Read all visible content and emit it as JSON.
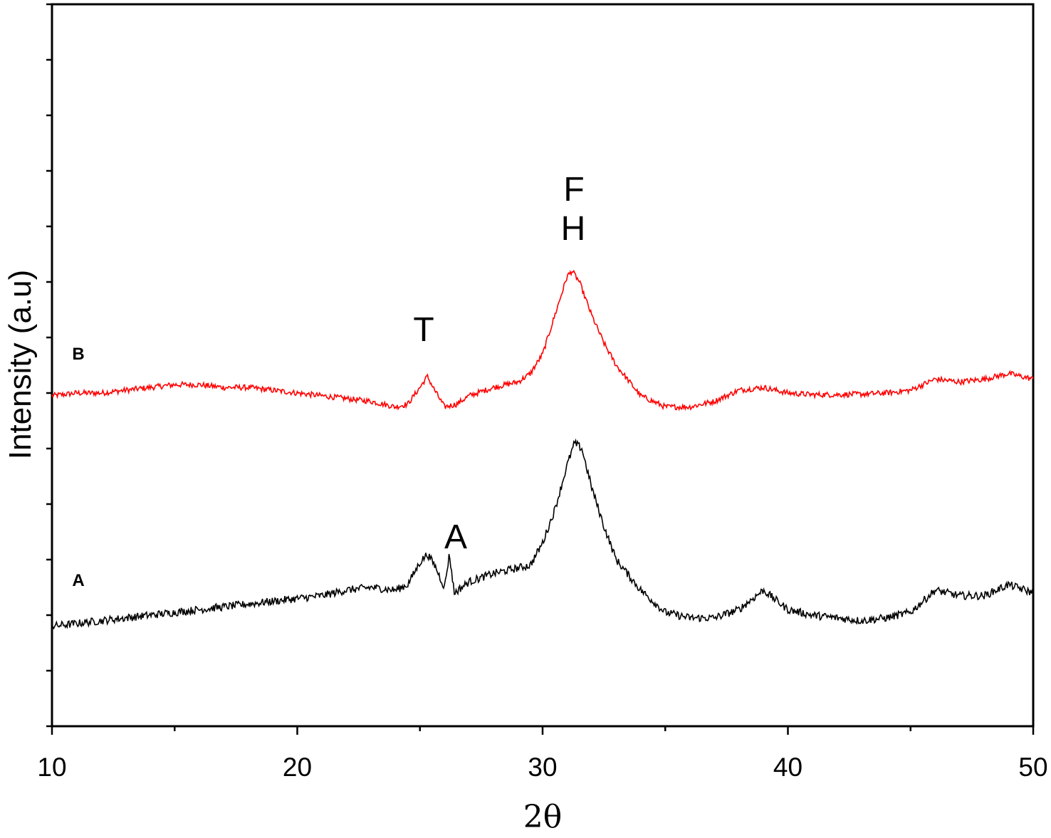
{
  "chart_data": {
    "type": "line",
    "title": "",
    "xlabel": "2θ",
    "ylabel": "Intensity (a.u)",
    "xlim": [
      10,
      50
    ],
    "x_ticks": [
      10,
      20,
      30,
      40,
      50
    ],
    "y_ticks_labeled": false,
    "grid": false,
    "legend": "none",
    "series": [
      {
        "name": "B",
        "color": "#ff0000",
        "x": [
          10,
          11,
          12,
          13,
          14,
          15,
          16,
          17,
          18,
          19,
          20,
          21,
          22,
          23,
          24,
          24.5,
          25,
          25.3,
          25.6,
          26,
          26.5,
          27,
          28,
          29,
          29.5,
          30,
          30.5,
          31,
          31.2,
          31.5,
          32,
          32.5,
          33,
          34,
          35,
          36,
          37,
          38,
          39,
          40,
          41,
          42,
          43,
          44,
          45,
          46,
          47,
          48,
          49,
          50
        ],
        "y": [
          5.95,
          6.0,
          6.0,
          6.05,
          6.1,
          6.15,
          6.15,
          6.1,
          6.1,
          6.05,
          6.0,
          5.95,
          5.9,
          5.85,
          5.75,
          5.8,
          6.1,
          6.3,
          6.05,
          5.75,
          5.8,
          5.95,
          6.1,
          6.2,
          6.35,
          6.7,
          7.4,
          8.1,
          8.2,
          8.0,
          7.4,
          6.9,
          6.5,
          5.95,
          5.75,
          5.75,
          5.85,
          6.05,
          6.1,
          6.0,
          5.97,
          5.97,
          5.98,
          6.0,
          6.05,
          6.25,
          6.2,
          6.25,
          6.35,
          6.25
        ]
      },
      {
        "name": "A",
        "color": "#000000",
        "x": [
          10,
          11,
          12,
          13,
          14,
          15,
          16,
          17,
          18,
          19,
          20,
          21,
          22,
          23,
          24,
          24.5,
          25,
          25.3,
          25.6,
          26,
          26.2,
          26.4,
          26.7,
          27,
          28,
          29,
          29.5,
          30,
          30.5,
          31,
          31.3,
          31.6,
          32,
          32.5,
          33,
          34,
          35,
          36,
          37,
          38,
          39,
          40,
          41,
          42,
          43,
          44,
          45,
          46,
          47,
          48,
          49,
          50
        ],
        "y": [
          1.8,
          1.85,
          1.9,
          1.95,
          2.0,
          2.05,
          2.1,
          2.15,
          2.2,
          2.25,
          2.3,
          2.35,
          2.45,
          2.5,
          2.45,
          2.55,
          2.95,
          3.1,
          2.9,
          2.5,
          3.1,
          2.4,
          2.5,
          2.6,
          2.75,
          2.85,
          2.9,
          3.3,
          3.9,
          4.7,
          5.1,
          5.0,
          4.3,
          3.6,
          3.0,
          2.45,
          2.05,
          1.95,
          1.95,
          2.1,
          2.45,
          2.1,
          2.0,
          1.95,
          1.9,
          1.95,
          2.05,
          2.45,
          2.35,
          2.35,
          2.55,
          2.4
        ]
      }
    ],
    "annotations": {
      "peak_T": "T",
      "peak_A": "A",
      "peak_F": "F",
      "peak_H": "H"
    }
  }
}
